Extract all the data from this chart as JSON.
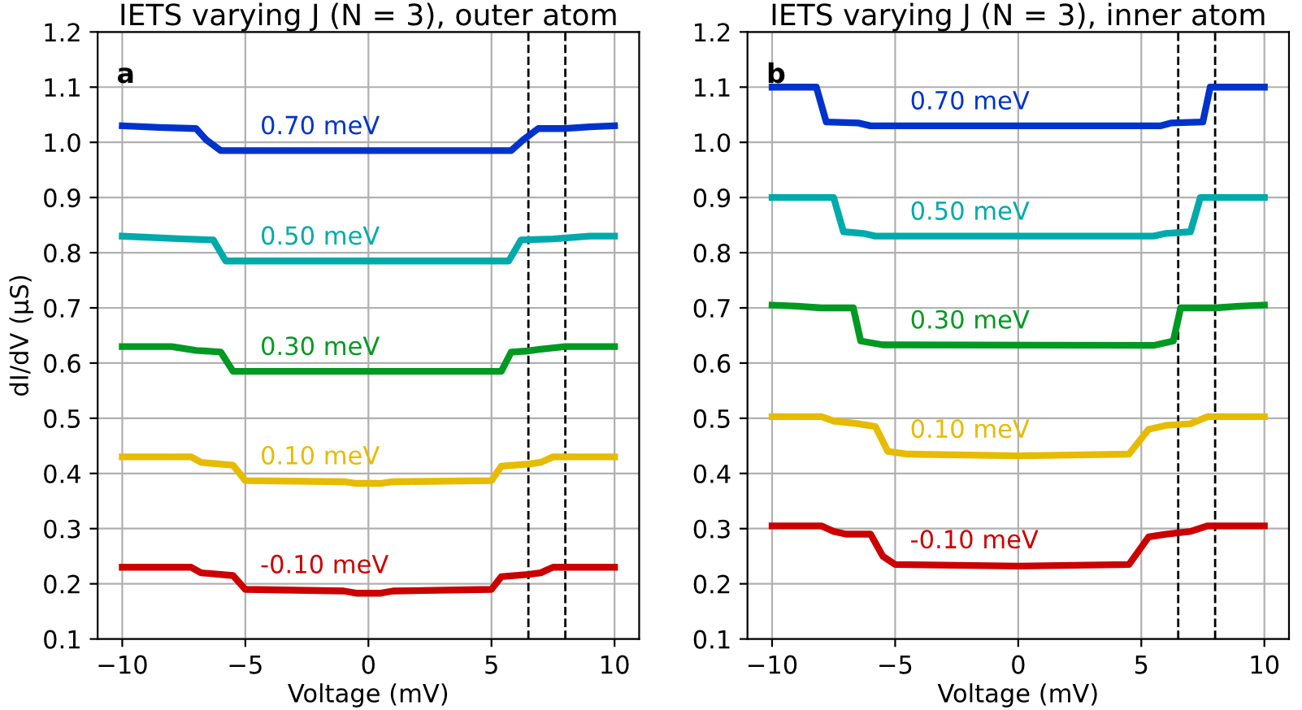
{
  "chart_data": [
    {
      "type": "line",
      "title": "IETS varying J (N = 3), outer atom",
      "xlabel": "Voltage (mV)",
      "ylabel": "dI/dV (μS)",
      "annotations": [
        "a"
      ],
      "xlim": [
        -11,
        11
      ],
      "xticks": [
        -10,
        -5,
        0,
        5,
        10
      ],
      "ylim": [
        0.1,
        1.2
      ],
      "yticks": [
        0.1,
        0.2,
        0.3,
        0.4,
        0.5,
        0.6,
        0.7,
        0.8,
        0.9,
        {
          "value": 1,
          "label": "1.0"
        },
        1.1,
        1.2
      ],
      "grid": true,
      "legend": false,
      "ref_lines": [
        {
          "axis": "x",
          "value": 6.5,
          "color": "#000000",
          "line_style": "dashed"
        },
        {
          "axis": "x",
          "value": 8,
          "color": "#000000",
          "line_style": "dashed"
        }
      ],
      "series": [
        {
          "name": "0.70 meV",
          "color": "#0033cc",
          "x": [
            -10,
            -8.5,
            -7,
            -6.6,
            -6,
            5.8,
            6.3,
            6.9,
            8,
            9,
            10
          ],
          "values": [
            1.03,
            1.027,
            1.025,
            1.005,
            0.985,
            0.985,
            1.005,
            1.025,
            1.025,
            1.028,
            1.03
          ]
        },
        {
          "name": "0.50 meV",
          "color": "#00aaaa",
          "x": [
            -10,
            -7.5,
            -6.3,
            -5.8,
            5.7,
            6.2,
            7.5,
            9,
            10
          ],
          "values": [
            0.83,
            0.825,
            0.823,
            0.785,
            0.785,
            0.823,
            0.825,
            0.83,
            0.83
          ]
        },
        {
          "name": "0.30 meV",
          "color": "#009922",
          "x": [
            -10,
            -8,
            -7,
            -6,
            -5.5,
            5.4,
            5.8,
            6.5,
            7,
            8,
            10
          ],
          "values": [
            0.63,
            0.63,
            0.623,
            0.62,
            0.585,
            0.585,
            0.62,
            0.622,
            0.625,
            0.63,
            0.63
          ]
        },
        {
          "name": "0.10 meV",
          "color": "#e6bb00",
          "x": [
            -10,
            -7.2,
            -6.8,
            -5.5,
            -5,
            -1,
            -0.5,
            0.5,
            1,
            5,
            5.4,
            6.5,
            7,
            7.5,
            10
          ],
          "values": [
            0.43,
            0.43,
            0.42,
            0.415,
            0.387,
            0.385,
            0.382,
            0.382,
            0.385,
            0.387,
            0.413,
            0.417,
            0.42,
            0.43,
            0.43
          ]
        },
        {
          "name": "-0.10 meV",
          "color": "#cc0000",
          "x": [
            -10,
            -7.2,
            -6.8,
            -5.5,
            -5,
            -1,
            -0.5,
            0.5,
            1,
            5,
            5.4,
            6.5,
            7,
            7.5,
            10
          ],
          "values": [
            0.23,
            0.23,
            0.22,
            0.215,
            0.19,
            0.187,
            0.183,
            0.183,
            0.187,
            0.19,
            0.213,
            0.217,
            0.22,
            0.23,
            0.23
          ]
        }
      ]
    },
    {
      "type": "line",
      "title": "IETS varying J (N = 3), inner atom",
      "xlabel": "Voltage (mV)",
      "annotations": [
        "b"
      ],
      "xlim": [
        -11,
        11
      ],
      "xticks": [
        -10,
        -5,
        0,
        5,
        10
      ],
      "ylim": [
        0.1,
        1.2
      ],
      "yticks": [
        0.1,
        0.2,
        0.3,
        0.4,
        0.5,
        0.6,
        0.7,
        0.8,
        0.9,
        {
          "value": 1,
          "label": "1.0"
        },
        1.1,
        1.2
      ],
      "grid": true,
      "legend": false,
      "ref_lines": [
        {
          "axis": "x",
          "value": 6.5,
          "color": "#000000",
          "line_style": "dashed"
        },
        {
          "axis": "x",
          "value": 8,
          "color": "#000000",
          "line_style": "dashed"
        }
      ],
      "series": [
        {
          "name": "0.70 meV",
          "color": "#0033cc",
          "x": [
            -10,
            -8.2,
            -7.8,
            -6.5,
            -6,
            5.8,
            6.2,
            7.5,
            7.8,
            10
          ],
          "values": [
            1.1,
            1.1,
            1.037,
            1.035,
            1.03,
            1.03,
            1.035,
            1.037,
            1.1,
            1.1
          ]
        },
        {
          "name": "0.50 meV",
          "color": "#00aaaa",
          "x": [
            -10,
            -7.5,
            -7.1,
            -6.3,
            -5.8,
            5.5,
            6,
            7,
            7.4,
            10
          ],
          "values": [
            0.9,
            0.9,
            0.838,
            0.835,
            0.83,
            0.83,
            0.835,
            0.838,
            0.9,
            0.9
          ]
        },
        {
          "name": "0.30 meV",
          "color": "#009922",
          "x": [
            -10,
            -9,
            -8,
            -6.7,
            -6.4,
            -5.5,
            5.5,
            6.3,
            6.6,
            8,
            9,
            10
          ],
          "values": [
            0.705,
            0.703,
            0.7,
            0.7,
            0.64,
            0.633,
            0.632,
            0.64,
            0.7,
            0.7,
            0.703,
            0.705
          ]
        },
        {
          "name": "0.10 meV",
          "color": "#e6bb00",
          "x": [
            -10,
            -8,
            -7.5,
            -6.5,
            -5.8,
            -5.3,
            -4.5,
            0,
            4.5,
            5.3,
            6,
            7,
            7.7,
            10
          ],
          "values": [
            0.503,
            0.503,
            0.495,
            0.49,
            0.485,
            0.44,
            0.435,
            0.432,
            0.435,
            0.48,
            0.487,
            0.49,
            0.503,
            0.503
          ]
        },
        {
          "name": "-0.10 meV",
          "color": "#cc0000",
          "x": [
            -10,
            -8,
            -7.5,
            -7,
            -6,
            -5.5,
            -5,
            0,
            4.5,
            5.3,
            6,
            7,
            7.7,
            10
          ],
          "values": [
            0.305,
            0.305,
            0.295,
            0.29,
            0.29,
            0.25,
            0.235,
            0.232,
            0.235,
            0.285,
            0.29,
            0.295,
            0.305,
            0.305
          ]
        }
      ]
    }
  ]
}
